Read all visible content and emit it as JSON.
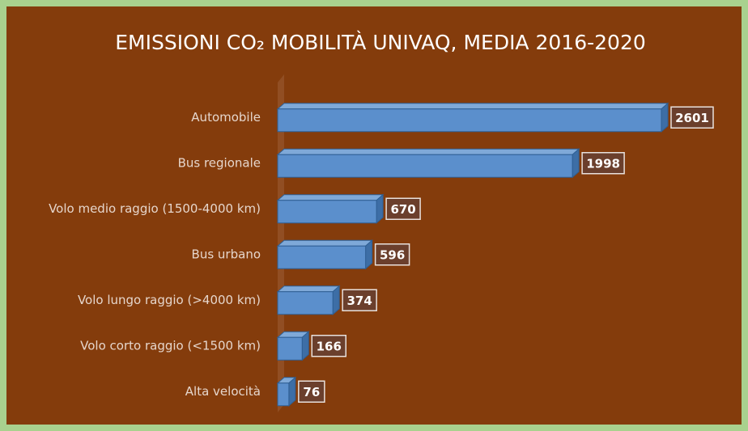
{
  "chart_data": {
    "type": "bar",
    "orientation": "horizontal",
    "title": "EMISSIONI CO₂ MOBILITÀ UNIVAQ, MEDIA 2016-2020",
    "categories": [
      "Automobile",
      "Bus regionale",
      "Volo medio raggio (1500-4000 km)",
      "Bus urbano",
      "Volo lungo raggio (>4000 km)",
      "Volo corto raggio (<1500 km)",
      "Alta velocità"
    ],
    "values": [
      2601,
      1998,
      670,
      596,
      374,
      166,
      76
    ],
    "color": "#5b8fcc"
  }
}
